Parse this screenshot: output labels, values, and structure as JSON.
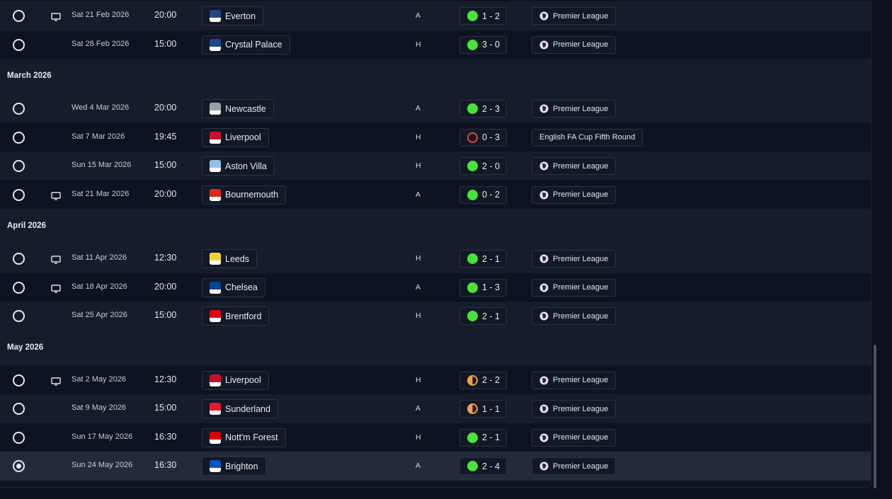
{
  "fixtures": [
    {
      "type": "match",
      "stripe": "odd",
      "date": "Sat 21 Feb 2026",
      "time": "20:00",
      "tv": true,
      "opponent": "Everton",
      "crest": "everton-crest-icon",
      "crest_color": "#274488",
      "venue": "A",
      "result": "win",
      "score": "1 - 2",
      "competition": "Premier League",
      "comp_icon": true
    },
    {
      "type": "match",
      "stripe": "even",
      "date": "Sat 28 Feb 2026",
      "time": "15:00",
      "tv": false,
      "opponent": "Crystal Palace",
      "crest": "crystal-palace-crest-icon",
      "crest_color": "#1b458f",
      "venue": "H",
      "result": "win",
      "score": "3 - 0",
      "competition": "Premier League",
      "comp_icon": true
    },
    {
      "type": "month",
      "label": "March 2026"
    },
    {
      "type": "match",
      "stripe": "odd",
      "date": "Wed 4 Mar 2026",
      "time": "20:00",
      "tv": false,
      "opponent": "Newcastle",
      "crest": "newcastle-crest-icon",
      "crest_color": "#9aa0a8",
      "venue": "A",
      "result": "win",
      "score": "2 - 3",
      "competition": "Premier League",
      "comp_icon": true
    },
    {
      "type": "match",
      "stripe": "even",
      "date": "Sat 7 Mar 2026",
      "time": "19:45",
      "tv": false,
      "opponent": "Liverpool",
      "crest": "liverpool-crest-icon",
      "crest_color": "#c8102e",
      "venue": "H",
      "result": "loss",
      "score": "0 - 3",
      "competition": "English FA Cup Fifth Round",
      "comp_icon": false
    },
    {
      "type": "match",
      "stripe": "odd",
      "date": "Sun 15 Mar 2026",
      "time": "15:00",
      "tv": false,
      "opponent": "Aston Villa",
      "crest": "aston-villa-crest-icon",
      "crest_color": "#95bfe5",
      "venue": "H",
      "result": "win",
      "score": "2 - 0",
      "competition": "Premier League",
      "comp_icon": true
    },
    {
      "type": "match",
      "stripe": "even",
      "date": "Sat 21 Mar 2026",
      "time": "20:00",
      "tv": true,
      "opponent": "Bournemouth",
      "crest": "bournemouth-crest-icon",
      "crest_color": "#da291c",
      "venue": "A",
      "result": "win",
      "score": "0 - 2",
      "competition": "Premier League",
      "comp_icon": true
    },
    {
      "type": "month",
      "label": "April 2026"
    },
    {
      "type": "match",
      "stripe": "odd",
      "date": "Sat 11 Apr 2026",
      "time": "12:30",
      "tv": true,
      "opponent": "Leeds",
      "crest": "leeds-crest-icon",
      "crest_color": "#f5d130",
      "venue": "H",
      "result": "win",
      "score": "2 - 1",
      "competition": "Premier League",
      "comp_icon": true
    },
    {
      "type": "match",
      "stripe": "even",
      "date": "Sat 18 Apr 2026",
      "time": "20:00",
      "tv": true,
      "opponent": "Chelsea",
      "crest": "chelsea-crest-icon",
      "crest_color": "#034694",
      "venue": "A",
      "result": "win",
      "score": "1 - 3",
      "competition": "Premier League",
      "comp_icon": true
    },
    {
      "type": "match",
      "stripe": "odd",
      "date": "Sat 25 Apr 2026",
      "time": "15:00",
      "tv": false,
      "opponent": "Brentford",
      "crest": "brentford-crest-icon",
      "crest_color": "#e30613",
      "venue": "H",
      "result": "win",
      "score": "2 - 1",
      "competition": "Premier League",
      "comp_icon": true
    },
    {
      "type": "month",
      "label": "May 2026"
    },
    {
      "type": "match",
      "stripe": "even",
      "date": "Sat 2 May 2026",
      "time": "12:30",
      "tv": true,
      "opponent": "Liverpool",
      "crest": "liverpool-crest-icon",
      "crest_color": "#c8102e",
      "venue": "H",
      "result": "draw",
      "score": "2 - 2",
      "competition": "Premier League",
      "comp_icon": true
    },
    {
      "type": "match",
      "stripe": "odd",
      "date": "Sat 9 May 2026",
      "time": "15:00",
      "tv": false,
      "opponent": "Sunderland",
      "crest": "sunderland-crest-icon",
      "crest_color": "#eb172b",
      "venue": "A",
      "result": "draw",
      "score": "1 - 1",
      "competition": "Premier League",
      "comp_icon": true
    },
    {
      "type": "match",
      "stripe": "even",
      "date": "Sun 17 May 2026",
      "time": "16:30",
      "tv": false,
      "opponent": "Nott'm Forest",
      "crest": "nottm-forest-crest-icon",
      "crest_color": "#dd0000",
      "venue": "H",
      "result": "win",
      "score": "2 - 1",
      "competition": "Premier League",
      "comp_icon": true
    },
    {
      "type": "match",
      "stripe": "selected",
      "selected": true,
      "date": "Sun 24 May 2026",
      "time": "16:30",
      "tv": false,
      "opponent": "Brighton",
      "crest": "brighton-crest-icon",
      "crest_color": "#0057b8",
      "venue": "A",
      "result": "win",
      "score": "2 - 4",
      "competition": "Premier League",
      "comp_icon": true
    }
  ]
}
